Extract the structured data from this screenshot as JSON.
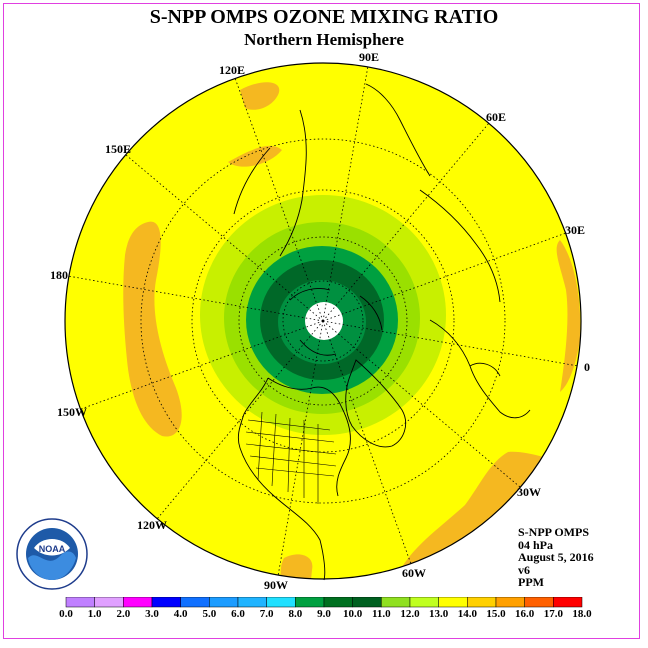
{
  "title": "S-NPP OMPS OZONE MIXING RATIO",
  "subtitle": "Northern Hemisphere",
  "longitude_labels": {
    "lon_90e": "90E",
    "lon_60e": "60E",
    "lon_30e": "30E",
    "lon_0": "0",
    "lon_30w": "30W",
    "lon_60w": "60W",
    "lon_90w": "90W",
    "lon_120w": "120W",
    "lon_150w": "150W",
    "lon_180": "180",
    "lon_150e": "150E",
    "lon_120e": "120E"
  },
  "info": {
    "instrument": "S-NPP OMPS",
    "level": "04 hPa",
    "date": "August 5, 2016",
    "version": "v6",
    "units": "PPM"
  },
  "colorbar": {
    "ticks": [
      "0.0",
      "1.0",
      "2.0",
      "3.0",
      "4.0",
      "5.0",
      "6.0",
      "7.0",
      "8.0",
      "9.0",
      "10.0",
      "11.0",
      "12.0",
      "13.0",
      "14.0",
      "15.0",
      "16.0",
      "17.0",
      "18.0"
    ],
    "colors": [
      "#c080ff",
      "#e0a0ff",
      "#ff00ff",
      "#0000ff",
      "#1070ff",
      "#1c9cff",
      "#20b4ff",
      "#20e0ff",
      "#00a040",
      "#007020",
      "#006020",
      "#90e020",
      "#c0ff20",
      "#ffff00",
      "#ffd000",
      "#ffa000",
      "#ff6000",
      "#ff0000",
      "#804020"
    ]
  },
  "map_colors": {
    "band_13_14": "#ffff00",
    "band_14_15": "#f5b820",
    "band_12_13": "#c8f000",
    "band_11_12": "#9ae000",
    "band_10_11": "#00a040",
    "band_9_10": "#006828",
    "band_8_9": "#009040",
    "polar_night": "#ffffff"
  }
}
